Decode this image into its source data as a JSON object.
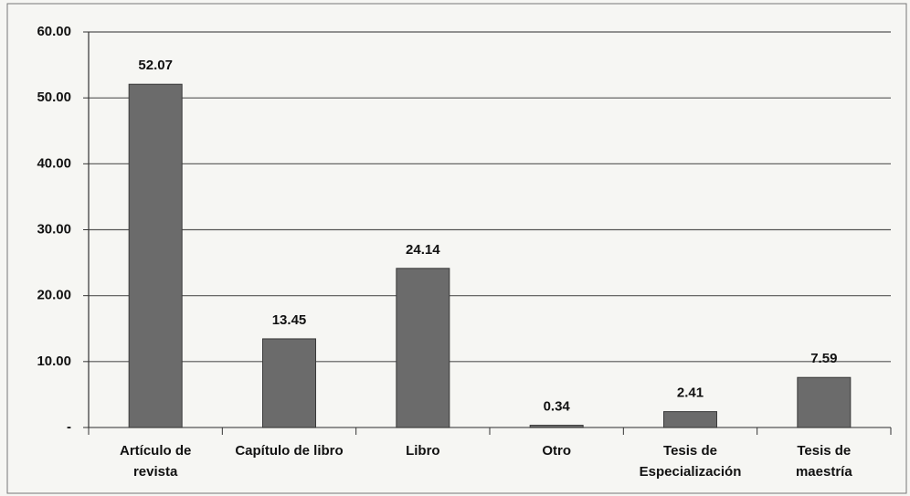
{
  "chart_data": {
    "type": "bar",
    "categories": [
      [
        "Artículo de",
        "revista"
      ],
      [
        "Capítulo de libro"
      ],
      [
        "Libro"
      ],
      [
        "Otro"
      ],
      [
        "Tesis de",
        "Especialización"
      ],
      [
        "Tesis de",
        "maestría"
      ]
    ],
    "values": [
      52.07,
      13.45,
      24.14,
      0.34,
      2.41,
      7.59
    ],
    "color": "#6b6b6b",
    "ylim": [
      0,
      60
    ],
    "yticks": [
      {
        "value": 0,
        "label": "-"
      },
      {
        "value": 10,
        "label": "10.00"
      },
      {
        "value": 20,
        "label": "20.00"
      },
      {
        "value": 30,
        "label": "30.00"
      },
      {
        "value": 40,
        "label": "40.00"
      },
      {
        "value": 50,
        "label": "50.00"
      },
      {
        "value": 60,
        "label": "60.00"
      }
    ],
    "grid": true
  }
}
